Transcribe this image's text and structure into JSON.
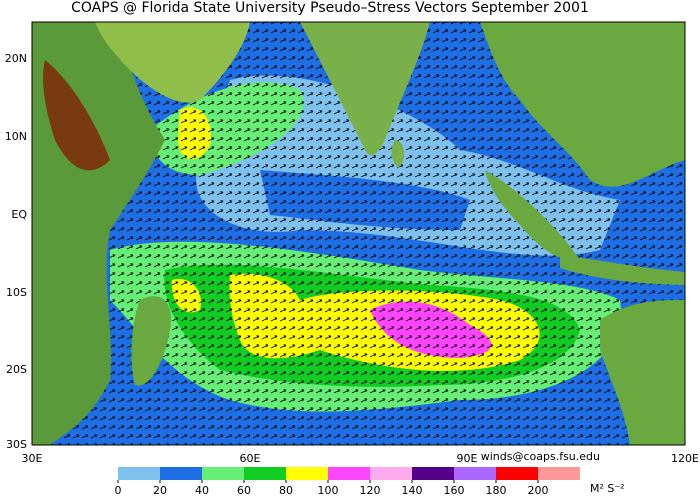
{
  "map": {
    "title": "COAPS @ Florida State University Pseudo–Stress Vectors September 2001",
    "lat_labels": [
      "20N",
      "10N",
      "EQ",
      "10S",
      "20S",
      "30S"
    ],
    "lon_labels": [
      "30E",
      "60E",
      "90E",
      "120E"
    ],
    "credit": "winds@coaps.fsu.edu",
    "units": "M² S⁻²",
    "colorbar": {
      "ticks": [
        0,
        20,
        40,
        60,
        80,
        100,
        120,
        140,
        160,
        180,
        200
      ],
      "colors": [
        "#7ec0ee",
        "#1e6fe6",
        "#66ee77",
        "#11cc22",
        "#ffff00",
        "#ff44ff",
        "#ffaaee",
        "#550088",
        "#aa66ff",
        "#ff0000",
        "#ff9999"
      ]
    }
  }
}
